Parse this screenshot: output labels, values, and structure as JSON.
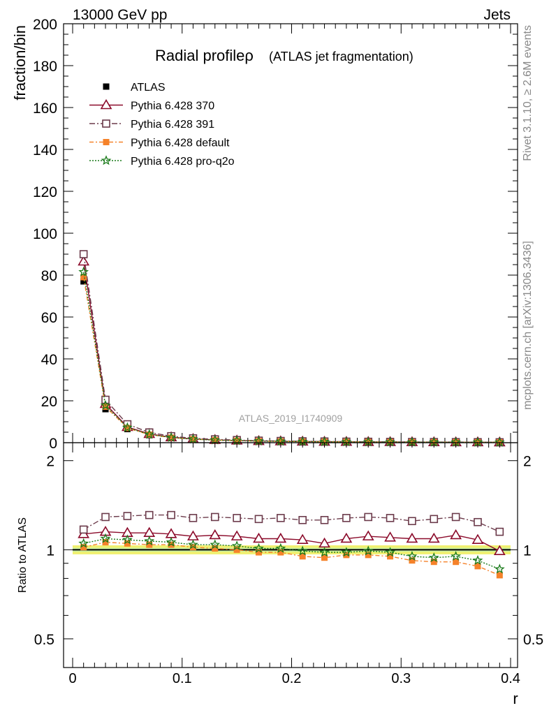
{
  "header": {
    "energy_label": "13000 GeV pp",
    "process_label": "Jets"
  },
  "side_text": {
    "rivet": "Rivet 3.1.10, ≥ 2.6M events",
    "mcplots": "mcplots.cern.ch [arXiv:1306.3436]"
  },
  "watermark": "ATLAS_2019_I1740909",
  "colors": {
    "atlas": "#000000",
    "p370": "#8b0a2a",
    "p391": "#6b3a4a",
    "pdefault": "#f5822a",
    "pq2o": "#1a7a1a",
    "band_inner": "#c8f0a0",
    "band_outer": "#f0f070"
  },
  "chart_data": [
    {
      "type": "line",
      "title": "Radial profileρ",
      "title_suffix": "(ATLAS jet fragmentation)",
      "xlabel": "r",
      "ylabel": "fraction/bin",
      "xlim": [
        0,
        0.4
      ],
      "ylim": [
        0,
        200
      ],
      "yticks": [
        0,
        20,
        40,
        60,
        80,
        100,
        120,
        140,
        160,
        180,
        200
      ],
      "legend_position": "top-left",
      "x": [
        0.01,
        0.03,
        0.05,
        0.07,
        0.09,
        0.11,
        0.13,
        0.15,
        0.17,
        0.19,
        0.21,
        0.23,
        0.25,
        0.27,
        0.29,
        0.31,
        0.33,
        0.35,
        0.37,
        0.39
      ],
      "series": [
        {
          "name": "ATLAS",
          "key": "atlas",
          "marker": "square-filled",
          "values": [
            77.0,
            16.0,
            6.5,
            3.6,
            2.3,
            1.6,
            1.2,
            0.95,
            0.75,
            0.62,
            0.52,
            0.45,
            0.39,
            0.34,
            0.3,
            0.27,
            0.24,
            0.22,
            0.2,
            0.18
          ]
        },
        {
          "name": "Pythia 6.428 370",
          "key": "p370",
          "marker": "triangle-open",
          "values": [
            86.5,
            18.5,
            7.5,
            4.2,
            2.6,
            1.8,
            1.35,
            1.05,
            0.82,
            0.68,
            0.56,
            0.47,
            0.42,
            0.37,
            0.33,
            0.29,
            0.26,
            0.24,
            0.22,
            0.18
          ]
        },
        {
          "name": "Pythia 6.428 391",
          "key": "p391",
          "marker": "square-open",
          "values": [
            90.0,
            20.5,
            8.8,
            4.9,
            3.1,
            2.1,
            1.6,
            1.25,
            0.98,
            0.82,
            0.67,
            0.58,
            0.51,
            0.45,
            0.4,
            0.35,
            0.31,
            0.29,
            0.25,
            0.21
          ]
        },
        {
          "name": "Pythia 6.428 default",
          "key": "pdefault",
          "marker": "square-filled",
          "values": [
            79.0,
            17.2,
            7.0,
            3.85,
            2.4,
            1.65,
            1.22,
            0.95,
            0.74,
            0.6,
            0.5,
            0.43,
            0.37,
            0.33,
            0.29,
            0.25,
            0.22,
            0.2,
            0.18,
            0.15
          ]
        },
        {
          "name": "Pythia 6.428 pro-q2o",
          "key": "pq2o",
          "marker": "star-open",
          "values": [
            81.5,
            17.8,
            7.2,
            3.95,
            2.45,
            1.7,
            1.25,
            0.97,
            0.76,
            0.63,
            0.51,
            0.44,
            0.38,
            0.33,
            0.29,
            0.26,
            0.23,
            0.21,
            0.19,
            0.16
          ]
        }
      ]
    },
    {
      "type": "line",
      "ylabel": "Ratio to ATLAS",
      "xlabel": "r",
      "xlim": [
        0,
        0.4
      ],
      "ylim": [
        0.4,
        2.3
      ],
      "y_scale": "log",
      "yticks": [
        0.5,
        1,
        2
      ],
      "xticks": [
        0,
        0.1,
        0.2,
        0.3,
        0.4
      ],
      "x": [
        0.01,
        0.03,
        0.05,
        0.07,
        0.09,
        0.11,
        0.13,
        0.15,
        0.17,
        0.19,
        0.21,
        0.23,
        0.25,
        0.27,
        0.29,
        0.31,
        0.33,
        0.35,
        0.37,
        0.39
      ],
      "band": {
        "inner": [
          0.985,
          1.015
        ],
        "outer": [
          0.965,
          1.035
        ]
      },
      "series": [
        {
          "name": "Pythia 6.428 370",
          "key": "p370",
          "marker": "triangle-open",
          "values": [
            1.13,
            1.15,
            1.14,
            1.14,
            1.13,
            1.11,
            1.12,
            1.11,
            1.09,
            1.09,
            1.08,
            1.05,
            1.09,
            1.11,
            1.1,
            1.09,
            1.09,
            1.12,
            1.08,
            0.99
          ]
        },
        {
          "name": "Pythia 6.428 391",
          "key": "p391",
          "marker": "square-open",
          "values": [
            1.17,
            1.29,
            1.3,
            1.31,
            1.31,
            1.28,
            1.29,
            1.28,
            1.27,
            1.28,
            1.26,
            1.26,
            1.28,
            1.29,
            1.28,
            1.25,
            1.27,
            1.29,
            1.24,
            1.15
          ]
        },
        {
          "name": "Pythia 6.428 default",
          "key": "pdefault",
          "marker": "square-filled",
          "values": [
            1.02,
            1.06,
            1.05,
            1.04,
            1.04,
            1.02,
            1.01,
            1.0,
            0.98,
            0.98,
            0.95,
            0.94,
            0.96,
            0.96,
            0.95,
            0.92,
            0.91,
            0.91,
            0.88,
            0.82
          ]
        },
        {
          "name": "Pythia 6.428 pro-q2o",
          "key": "pq2o",
          "marker": "star-open",
          "values": [
            1.05,
            1.09,
            1.08,
            1.07,
            1.06,
            1.04,
            1.04,
            1.03,
            1.01,
            1.01,
            0.99,
            0.98,
            0.98,
            0.99,
            0.98,
            0.95,
            0.94,
            0.95,
            0.92,
            0.86
          ]
        }
      ]
    }
  ]
}
